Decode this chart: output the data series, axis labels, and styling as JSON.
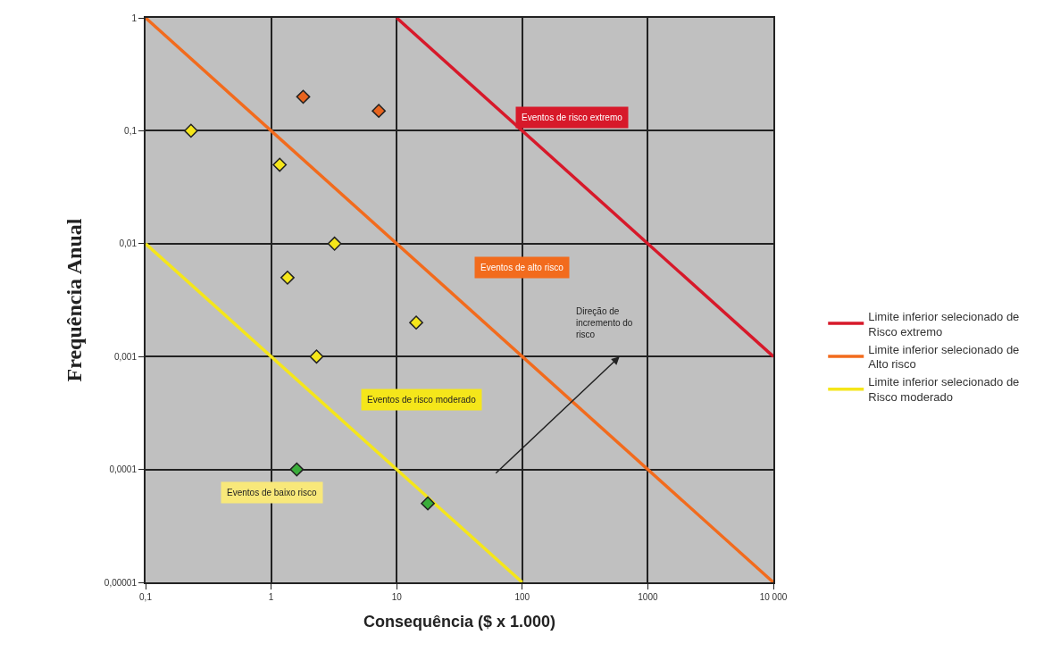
{
  "chart_data": {
    "type": "scatter",
    "xlabel": "Consequência ($ x 1.000)",
    "ylabel": "Frequência Anual",
    "log": "xy",
    "grid": true,
    "legend": "right",
    "marker": "diamond",
    "xlim": [
      0.1,
      10000
    ],
    "ylim": [
      1e-05,
      1
    ],
    "xticks": [
      {
        "value": 0.1,
        "label": "0,1"
      },
      1,
      10,
      100,
      1000,
      {
        "value": 10000,
        "label": "10 000"
      }
    ],
    "yticks": [
      1,
      {
        "value": 0.1,
        "label": "0,1"
      },
      {
        "value": 0.01,
        "label": "0,01"
      },
      {
        "value": 0.001,
        "label": "0,001"
      },
      {
        "value": 0.0001,
        "label": "0,0001"
      },
      {
        "value": 1e-05,
        "label": "0,00001"
      }
    ],
    "series": [
      {
        "type": "line",
        "name": "Limite inferior selecionado de Risco extremo",
        "color": "#d7192a",
        "x": [
          10,
          10000
        ],
        "values": [
          1,
          0.001
        ],
        "marker": "none"
      },
      {
        "type": "line",
        "name": "Limite inferior selecionado de Alto risco",
        "color": "#f26b1d",
        "x": [
          0.1,
          10000
        ],
        "values": [
          1,
          1e-05
        ],
        "marker": "none"
      },
      {
        "type": "line",
        "name": "Limite inferior selecionado de Risco moderado",
        "color": "#f5e61a",
        "x": [
          0.1,
          100
        ],
        "values": [
          0.01,
          1e-05
        ],
        "marker": "none"
      },
      {
        "x": [
          0.23,
          1.17,
          3.2,
          1.35,
          14.3,
          2.3,
          1.8,
          7.2,
          1.6,
          17.7
        ],
        "values": [
          0.1,
          0.05,
          0.01,
          0.005,
          0.002,
          0.001,
          0.2,
          0.15,
          0.0001,
          5e-05
        ],
        "colors": [
          "#f5e61a",
          "#f5e61a",
          "#f5e61a",
          "#f5e61a",
          "#f5e61a",
          "#f5e61a",
          "#e8641e",
          "#e8641e",
          "#3aad3a",
          "#3aad3a"
        ]
      }
    ],
    "annotations": [
      "Eventos de risco extremo",
      "Eventos de alto risco",
      "Eventos de risco moderado",
      "Eventos de baixo risco",
      "Direção de incremento do risco"
    ]
  }
}
